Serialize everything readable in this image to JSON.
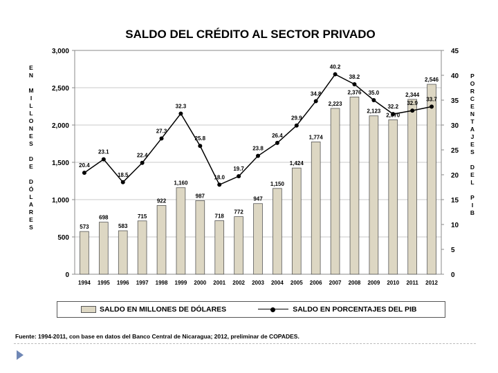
{
  "chart_data": {
    "type": "bar+line",
    "title": "SALDO DEL CRÉDITO AL SECTOR PRIVADO",
    "categories": [
      "1994",
      "1995",
      "1996",
      "1997",
      "1998",
      "1999",
      "2000",
      "2001",
      "2002",
      "2003",
      "2004",
      "2005",
      "2006",
      "2007",
      "2008",
      "2009",
      "2010",
      "2011",
      "2012"
    ],
    "series": [
      {
        "name": "SALDO EN MILLONES DE DÓLARES",
        "type": "bar",
        "axis": "left",
        "values": [
          573,
          698,
          583,
          715,
          922,
          1160,
          987,
          718,
          772,
          947,
          1150,
          1424,
          1774,
          2223,
          2376,
          2123,
          2070,
          2344,
          2546
        ],
        "labels": [
          "573",
          "698",
          "583",
          "715",
          "922",
          "1,160",
          "987",
          "718",
          "772",
          "947",
          "1,150",
          "1,424",
          "1,774",
          "2,223",
          "2,376",
          "2,123",
          "2,070",
          "2,344",
          "2,546"
        ]
      },
      {
        "name": "SALDO EN PORCENTAJES DEL PIB",
        "type": "line",
        "axis": "right",
        "values": [
          20.4,
          23.1,
          18.5,
          22.4,
          27.3,
          32.3,
          25.8,
          18.0,
          19.7,
          23.8,
          26.4,
          29.9,
          34.8,
          40.2,
          38.2,
          35.0,
          32.2,
          32.9,
          33.7
        ],
        "labels": [
          "20.4",
          "23.1",
          "18.5",
          "22.4",
          "27.3",
          "32.3",
          "25.8",
          "18.0",
          "19.7",
          "23.8",
          "26.4",
          "29.9",
          "34.8",
          "40.2",
          "38.2",
          "35.0",
          "32.2",
          "32.9",
          "33.7"
        ]
      }
    ],
    "left_axis": {
      "label": "EN MILLONES DE DÓLARES",
      "ylim": [
        0,
        3000
      ],
      "ticks": [
        0,
        500,
        1000,
        1500,
        2000,
        2500,
        3000
      ],
      "tick_labels": [
        "0",
        "500",
        "1,000",
        "1,500",
        "2,000",
        "2,500",
        "3,000"
      ]
    },
    "right_axis": {
      "label": "PORCENTAJES DEL PIB",
      "ylim": [
        0,
        45
      ],
      "ticks": [
        0,
        5,
        10,
        15,
        20,
        25,
        30,
        35,
        40,
        45
      ],
      "tick_labels": [
        "0",
        "5",
        "10",
        "15",
        "20",
        "25",
        "30",
        "35",
        "40",
        "45"
      ]
    },
    "grid": true,
    "legend_position": "bottom",
    "colors": {
      "bar": "#ddd7c3",
      "bar_stroke": "#555555",
      "line": "#000000",
      "grid": "#c8c8c8"
    }
  },
  "left_vertical_label": [
    "E",
    "N",
    "",
    "M",
    "I",
    "L",
    "L",
    "O",
    "N",
    "E",
    "S",
    "",
    "D",
    "E",
    "",
    "D",
    "Ó",
    "L",
    "A",
    "R",
    "E",
    "S"
  ],
  "right_vertical_label": [
    "P",
    "O",
    "R",
    "C",
    "E",
    "N",
    "T",
    "A",
    "J",
    "E",
    "S",
    "",
    "D",
    "E",
    "L",
    "",
    "P",
    "I",
    "B"
  ],
  "legend": {
    "bar_label": "SALDO EN MILLONES DE DÓLARES",
    "line_label": "SALDO EN PORCENTAJES DEL PIB"
  },
  "source": "Fuente: 1994-2011, con base en datos del Banco Central de Nicaragua; 2012, preliminar de COPADES."
}
